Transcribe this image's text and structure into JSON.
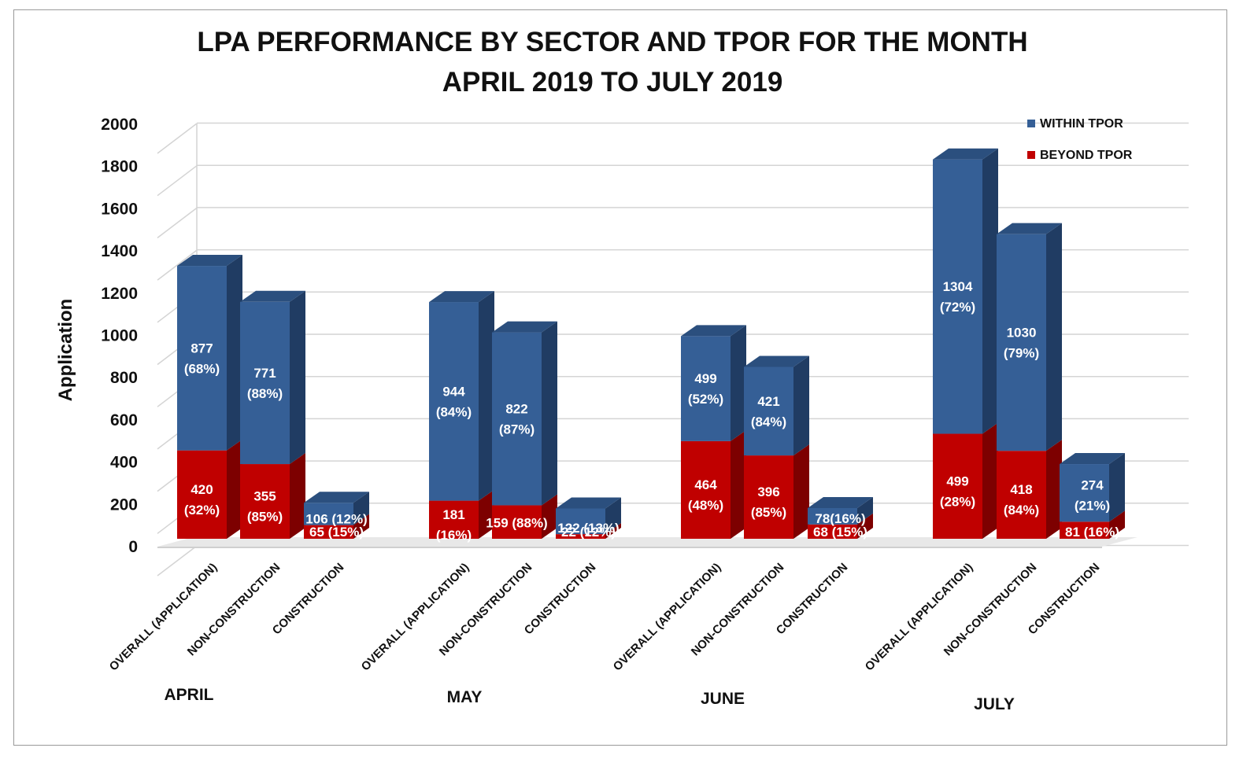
{
  "chart_data": {
    "type": "bar",
    "stacked": true,
    "title": [
      "LPA PERFORMANCE BY SECTOR AND TPOR FOR THE MONTH",
      "APRIL 2019 TO JULY 2019"
    ],
    "xlabel": "",
    "ylabel": "Application",
    "ylim": [
      0,
      2000
    ],
    "yticks": [
      0,
      200,
      400,
      600,
      800,
      1000,
      1200,
      1400,
      1600,
      1800,
      2000
    ],
    "grid": true,
    "legend_position": "top-right",
    "series": [
      {
        "name": "WITHIN TPOR",
        "color": "#355f96"
      },
      {
        "name": "BEYOND TPOR",
        "color": "#c00000"
      }
    ],
    "groups": [
      {
        "month": "APRIL",
        "bars": [
          {
            "category": "OVERALL (APPLICATION)",
            "beyond": 420,
            "within": 877,
            "beyond_label": [
              "420",
              "(32%)"
            ],
            "within_label": [
              "877",
              "(68%)"
            ]
          },
          {
            "category": "NON-CONSTRUCTION",
            "beyond": 355,
            "within": 771,
            "beyond_label": [
              "355",
              "(85%)"
            ],
            "within_label": [
              "771",
              "(88%)"
            ]
          },
          {
            "category": "CONSTRUCTION",
            "beyond": 65,
            "within": 106,
            "beyond_label": [
              "65 (15%)"
            ],
            "within_label": [
              "106 (12%)"
            ]
          }
        ]
      },
      {
        "month": "MAY",
        "bars": [
          {
            "category": "OVERALL (APPLICATION)",
            "beyond": 181,
            "within": 944,
            "beyond_label": [
              "181",
              "(16%)"
            ],
            "within_label": [
              "944",
              "(84%)"
            ]
          },
          {
            "category": "NON-CONSTRUCTION",
            "beyond": 159,
            "within": 822,
            "beyond_label": [
              "159 (88%)"
            ],
            "within_label": [
              "822",
              "(87%)"
            ]
          },
          {
            "category": "CONSTRUCTION",
            "beyond": 22,
            "within": 122,
            "beyond_label": [
              "22 (12%)"
            ],
            "within_label": [
              "122 (13%)"
            ]
          }
        ]
      },
      {
        "month": "JUNE",
        "bars": [
          {
            "category": "OVERALL (APPLICATION)",
            "beyond": 464,
            "within": 499,
            "beyond_label": [
              "464",
              "(48%)"
            ],
            "within_label": [
              "499",
              "(52%)"
            ]
          },
          {
            "category": "NON-CONSTRUCTION",
            "beyond": 396,
            "within": 421,
            "beyond_label": [
              "396",
              "(85%)"
            ],
            "within_label": [
              "421",
              "(84%)"
            ]
          },
          {
            "category": "CONSTRUCTION",
            "beyond": 68,
            "within": 78,
            "beyond_label": [
              "68 (15%)"
            ],
            "within_label": [
              "78(16%)"
            ]
          }
        ]
      },
      {
        "month": "JULY",
        "bars": [
          {
            "category": "OVERALL (APPLICATION)",
            "beyond": 499,
            "within": 1304,
            "beyond_label": [
              "499",
              "(28%)"
            ],
            "within_label": [
              "1304",
              "(72%)"
            ]
          },
          {
            "category": "NON-CONSTRUCTION",
            "beyond": 418,
            "within": 1030,
            "beyond_label": [
              "418",
              "(84%)"
            ],
            "within_label": [
              "1030",
              "(79%)"
            ]
          },
          {
            "category": "CONSTRUCTION",
            "beyond": 81,
            "within": 274,
            "beyond_label": [
              "81 (16%)"
            ],
            "within_label": [
              "274",
              "(21%)"
            ]
          }
        ]
      }
    ]
  }
}
